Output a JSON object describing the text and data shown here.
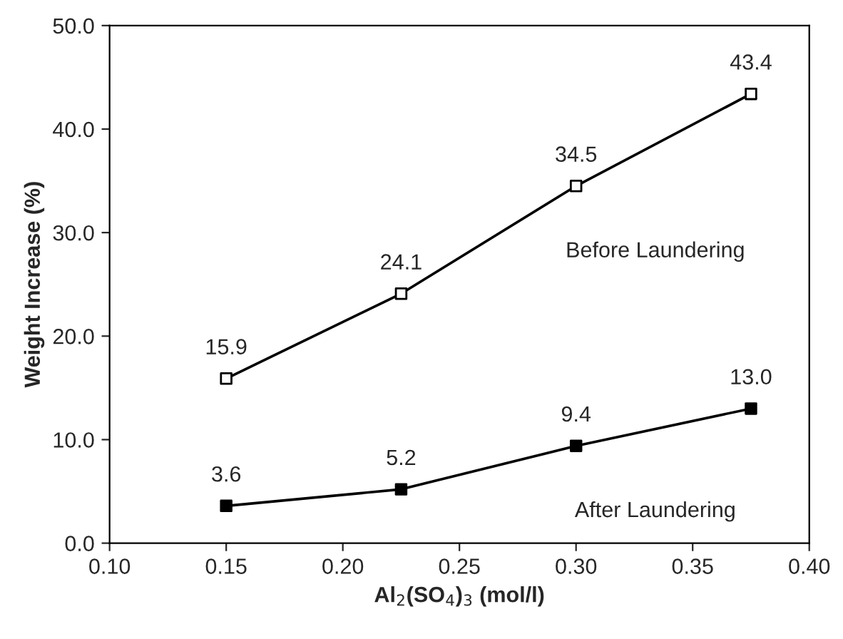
{
  "chart_data": {
    "type": "line",
    "xlabel": "Al$_{2}$(SO$_{4}$)$_{3}$ (mol/l)",
    "ylabel": "Weight Increase (%)",
    "x": [
      0.15,
      0.225,
      0.3,
      0.375
    ],
    "series": [
      {
        "name": "Before Laundering",
        "color": "#000000",
        "values": [
          15.9,
          24.1,
          34.5,
          43.4
        ],
        "value_labels": [
          "15.9",
          "24.1",
          "34.5",
          "43.4"
        ]
      },
      {
        "name": "After Laundering",
        "color": "#000000",
        "values": [
          3.6,
          5.2,
          9.4,
          13.0
        ],
        "value_labels": [
          "3.6",
          "5.2",
          "9.4",
          "13.0"
        ]
      }
    ],
    "xlim": [
      0.1,
      0.4
    ],
    "xticks": [
      {
        "value": 0.1,
        "label": "0.10"
      },
      {
        "value": 0.15,
        "label": "0.15"
      },
      {
        "value": 0.2,
        "label": "0.20"
      },
      {
        "value": 0.25,
        "label": "0.25"
      },
      {
        "value": 0.3,
        "label": "0.30"
      },
      {
        "value": 0.35,
        "label": "0.35"
      },
      {
        "value": 0.4,
        "label": "0.40"
      }
    ],
    "ylim": [
      0,
      50
    ],
    "yticks": [
      {
        "value": 0,
        "label": "0.0"
      },
      {
        "value": 10,
        "label": "10.0"
      },
      {
        "value": 20,
        "label": "20.0"
      },
      {
        "value": 30,
        "label": "30.0"
      },
      {
        "value": 40,
        "label": "40.0"
      },
      {
        "value": 50,
        "label": "50.0"
      }
    ],
    "marker": "square",
    "line_style": "solid",
    "grid": false,
    "legend": false
  }
}
